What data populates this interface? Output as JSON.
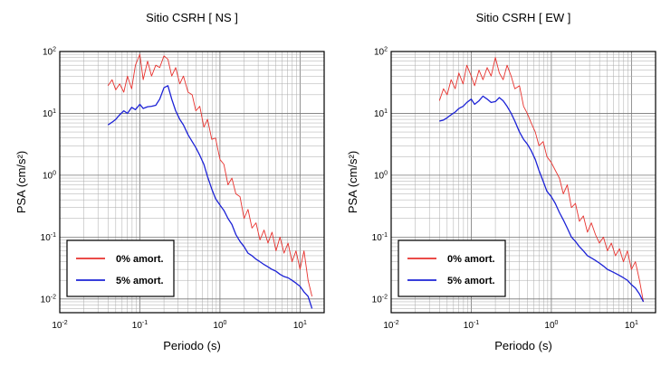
{
  "chart_data": [
    {
      "type": "line",
      "title": "Sitio CSRH [ NS ]",
      "xlabel": "Periodo (s)",
      "ylabel": "PSA (cm/s²)",
      "xscale": "log",
      "yscale": "log",
      "xlim": [
        0.01,
        20
      ],
      "ylim": [
        0.006,
        100
      ],
      "grid": true,
      "legend_position": "bottom-left",
      "x_ticks": [
        {
          "value": 0.01,
          "base": "10",
          "exp": "-2"
        },
        {
          "value": 0.1,
          "base": "10",
          "exp": "-1"
        },
        {
          "value": 1,
          "base": "10",
          "exp": "0"
        },
        {
          "value": 10,
          "base": "10",
          "exp": "1"
        }
      ],
      "y_ticks": [
        {
          "value": 0.01,
          "base": "10",
          "exp": "-2"
        },
        {
          "value": 0.1,
          "base": "10",
          "exp": "-1"
        },
        {
          "value": 1,
          "base": "10",
          "exp": "0"
        },
        {
          "value": 10,
          "base": "10",
          "exp": "1"
        },
        {
          "value": 100,
          "base": "10",
          "exp": "2"
        }
      ],
      "series": [
        {
          "name": "0% amort.",
          "color": "#e8322e",
          "x": [
            0.04,
            0.045,
            0.05,
            0.056,
            0.063,
            0.07,
            0.079,
            0.088,
            0.1,
            0.11,
            0.125,
            0.14,
            0.158,
            0.177,
            0.2,
            0.224,
            0.25,
            0.28,
            0.315,
            0.35,
            0.4,
            0.45,
            0.5,
            0.56,
            0.63,
            0.7,
            0.79,
            0.88,
            1.0,
            1.12,
            1.26,
            1.41,
            1.58,
            1.78,
            2.0,
            2.24,
            2.51,
            2.82,
            3.16,
            3.55,
            3.98,
            4.47,
            5.01,
            5.62,
            6.31,
            7.08,
            7.94,
            8.91,
            10.0,
            11.2,
            12.6,
            14.1
          ],
          "y": [
            28,
            35,
            24,
            30,
            22,
            40,
            25,
            60,
            90,
            35,
            70,
            40,
            60,
            55,
            85,
            75,
            40,
            55,
            30,
            40,
            22,
            20,
            11,
            13,
            6,
            8,
            3.8,
            4,
            1.8,
            1.5,
            0.7,
            0.9,
            0.5,
            0.45,
            0.2,
            0.28,
            0.14,
            0.17,
            0.09,
            0.13,
            0.08,
            0.12,
            0.06,
            0.1,
            0.055,
            0.08,
            0.04,
            0.06,
            0.03,
            0.06,
            0.02,
            0.011
          ]
        },
        {
          "name": "5% amort.",
          "color": "#1c22d6",
          "x": [
            0.04,
            0.045,
            0.05,
            0.056,
            0.063,
            0.07,
            0.079,
            0.088,
            0.1,
            0.11,
            0.125,
            0.14,
            0.158,
            0.177,
            0.2,
            0.224,
            0.25,
            0.28,
            0.315,
            0.35,
            0.4,
            0.45,
            0.5,
            0.56,
            0.63,
            0.7,
            0.79,
            0.88,
            1.0,
            1.12,
            1.26,
            1.41,
            1.58,
            1.78,
            2.0,
            2.24,
            2.51,
            2.82,
            3.16,
            3.55,
            3.98,
            4.47,
            5.01,
            5.62,
            6.31,
            7.08,
            7.94,
            8.91,
            10.0,
            11.2,
            12.6,
            14.1
          ],
          "y": [
            6.5,
            7.2,
            8,
            9.5,
            11,
            10,
            12.5,
            11.5,
            14,
            12,
            12.8,
            13,
            13.5,
            17,
            26,
            28,
            17,
            11,
            8,
            6.5,
            4.5,
            3.5,
            2.8,
            2.1,
            1.5,
            0.95,
            0.6,
            0.42,
            0.33,
            0.27,
            0.2,
            0.16,
            0.11,
            0.085,
            0.07,
            0.055,
            0.05,
            0.044,
            0.04,
            0.036,
            0.033,
            0.03,
            0.028,
            0.025,
            0.023,
            0.022,
            0.02,
            0.018,
            0.016,
            0.013,
            0.011,
            0.007
          ]
        }
      ]
    },
    {
      "type": "line",
      "title": "Sitio CSRH [ EW ]",
      "xlabel": "Periodo (s)",
      "ylabel": "PSA (cm/s²)",
      "xscale": "log",
      "yscale": "log",
      "xlim": [
        0.01,
        20
      ],
      "ylim": [
        0.006,
        100
      ],
      "grid": true,
      "legend_position": "bottom-left",
      "x_ticks": [
        {
          "value": 0.01,
          "base": "10",
          "exp": "-2"
        },
        {
          "value": 0.1,
          "base": "10",
          "exp": "-1"
        },
        {
          "value": 1,
          "base": "10",
          "exp": "0"
        },
        {
          "value": 10,
          "base": "10",
          "exp": "1"
        }
      ],
      "y_ticks": [
        {
          "value": 0.01,
          "base": "10",
          "exp": "-2"
        },
        {
          "value": 0.1,
          "base": "10",
          "exp": "-1"
        },
        {
          "value": 1,
          "base": "10",
          "exp": "0"
        },
        {
          "value": 10,
          "base": "10",
          "exp": "1"
        },
        {
          "value": 100,
          "base": "10",
          "exp": "2"
        }
      ],
      "series": [
        {
          "name": "0% amort.",
          "color": "#e8322e",
          "x": [
            0.04,
            0.045,
            0.05,
            0.056,
            0.063,
            0.07,
            0.079,
            0.088,
            0.1,
            0.11,
            0.125,
            0.14,
            0.158,
            0.177,
            0.2,
            0.224,
            0.25,
            0.28,
            0.315,
            0.35,
            0.4,
            0.45,
            0.5,
            0.56,
            0.63,
            0.7,
            0.79,
            0.88,
            1.0,
            1.12,
            1.26,
            1.41,
            1.58,
            1.78,
            2.0,
            2.24,
            2.51,
            2.82,
            3.16,
            3.55,
            3.98,
            4.47,
            5.01,
            5.62,
            6.31,
            7.08,
            7.94,
            8.91,
            10.0,
            11.2,
            12.6,
            14.1
          ],
          "y": [
            16,
            25,
            20,
            35,
            25,
            45,
            30,
            60,
            40,
            28,
            50,
            35,
            55,
            40,
            80,
            45,
            35,
            60,
            40,
            25,
            28,
            13,
            10,
            7,
            5,
            3,
            3.5,
            2,
            1.6,
            1.2,
            0.9,
            0.5,
            0.7,
            0.3,
            0.35,
            0.18,
            0.22,
            0.12,
            0.17,
            0.11,
            0.08,
            0.1,
            0.06,
            0.08,
            0.05,
            0.065,
            0.04,
            0.06,
            0.03,
            0.04,
            0.02,
            0.009
          ]
        },
        {
          "name": "5% amort.",
          "color": "#1c22d6",
          "x": [
            0.04,
            0.045,
            0.05,
            0.056,
            0.063,
            0.07,
            0.079,
            0.088,
            0.1,
            0.11,
            0.125,
            0.14,
            0.158,
            0.177,
            0.2,
            0.224,
            0.25,
            0.28,
            0.315,
            0.35,
            0.4,
            0.45,
            0.5,
            0.56,
            0.63,
            0.7,
            0.79,
            0.88,
            1.0,
            1.12,
            1.26,
            1.41,
            1.58,
            1.78,
            2.0,
            2.24,
            2.51,
            2.82,
            3.16,
            3.55,
            3.98,
            4.47,
            5.01,
            5.62,
            6.31,
            7.08,
            7.94,
            8.91,
            10.0,
            11.2,
            12.6,
            14.1
          ],
          "y": [
            7.5,
            7.8,
            8.5,
            9.5,
            10.5,
            12,
            13,
            15,
            17,
            14,
            16,
            19,
            17,
            15,
            15.5,
            18,
            16,
            13,
            10,
            7.5,
            5,
            3.8,
            3.2,
            2.5,
            1.8,
            1.2,
            0.8,
            0.55,
            0.45,
            0.35,
            0.25,
            0.19,
            0.14,
            0.1,
            0.085,
            0.07,
            0.06,
            0.05,
            0.046,
            0.042,
            0.038,
            0.034,
            0.03,
            0.028,
            0.026,
            0.024,
            0.022,
            0.02,
            0.017,
            0.015,
            0.012,
            0.009
          ]
        }
      ]
    }
  ]
}
